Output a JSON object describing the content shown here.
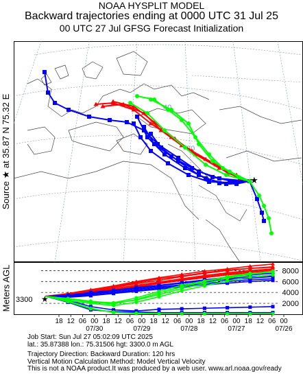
{
  "header": {
    "line1": "NOAA HYSPLIT MODEL",
    "line2": "Backward trajectories ending at 0000 UTC 31 Jul 25",
    "line3": "00 UTC 27 Jul    GFSG  Forecast Initialization"
  },
  "side_label": "Source ★ at   35.87 N   75.32 E",
  "vertical_axis_label": "Meters AGL",
  "source_height_label": "3300",
  "map": {
    "latitude_labels": [
      "40",
      "30"
    ],
    "trajectory_colors": [
      "#ff0000",
      "#0000ff",
      "#00ff00"
    ]
  },
  "footer": {
    "job_start": "Job Start: Sun Jul 27 05:02:09 UTC 2025",
    "location": "lat.: 35.87388   lon.: 75.31506   hgt: 3300.0 m AGL",
    "direction": "Trajectory Direction: Backward        Duration: 120 hrs",
    "vertical_motion": "Vertical Motion Calculation Method: Model Vertical Velocity",
    "disclaimer": "This is not a NOAA product.It was produced by a web user. www.arl.noaa.gov/ready"
  },
  "chart_data": {
    "type": "line",
    "ylabel": "Meters AGL",
    "yticks": [
      2000,
      4000,
      6000,
      8000
    ],
    "ylim": [
      0,
      9300
    ],
    "x_hour_labels": [
      "18",
      "12",
      "06",
      "00",
      "18",
      "12",
      "06",
      "00",
      "18",
      "12",
      "06",
      "00",
      "18",
      "12",
      "06",
      "00",
      "18",
      "12",
      "06",
      "00"
    ],
    "x_date_labels": [
      "07/30",
      "07/29",
      "07/28",
      "07/27",
      "07/26"
    ],
    "xlim_hours_back": [
      120,
      0
    ],
    "source_height": 3300,
    "series": [
      {
        "color": "#ff0000",
        "values": [
          3300,
          3800,
          4500,
          5200,
          6000,
          6700,
          7300,
          7900,
          8300,
          8800,
          9200
        ]
      },
      {
        "color": "#ff0000",
        "values": [
          3300,
          3600,
          4200,
          4900,
          5600,
          6200,
          6900,
          7500,
          8000,
          8400,
          8700
        ]
      },
      {
        "color": "#ff0000",
        "values": [
          3300,
          3700,
          4300,
          5000,
          5800,
          6500,
          7000,
          7600,
          8100,
          8400,
          8600
        ]
      },
      {
        "color": "#ff0000",
        "values": [
          3300,
          3500,
          4100,
          4700,
          5300,
          5900,
          6500,
          7100,
          7600,
          8000,
          8300
        ]
      },
      {
        "color": "#ff0000",
        "values": [
          3300,
          3600,
          4000,
          4500,
          5100,
          5700,
          6300,
          6900,
          7400,
          7800,
          8100
        ]
      },
      {
        "color": "#ff0000",
        "values": [
          3300,
          3400,
          3900,
          4400,
          5000,
          5600,
          6200,
          6700,
          7200,
          7600,
          7900
        ]
      },
      {
        "color": "#0000ff",
        "values": [
          3300,
          3500,
          4000,
          4400,
          4900,
          5300,
          5800,
          6300,
          6800,
          7200,
          7500
        ]
      },
      {
        "color": "#0000ff",
        "values": [
          3300,
          3400,
          3800,
          4300,
          4800,
          5200,
          5700,
          6100,
          6500,
          6900,
          7100
        ]
      },
      {
        "color": "#0000ff",
        "values": [
          3300,
          3300,
          3700,
          4100,
          4600,
          5000,
          5400,
          5900,
          6300,
          6600,
          6900
        ]
      },
      {
        "color": "#0000ff",
        "values": [
          3300,
          3200,
          3500,
          3900,
          4400,
          4800,
          5200,
          5600,
          6000,
          6300,
          6500
        ]
      },
      {
        "color": "#0000ff",
        "values": [
          3300,
          3100,
          3400,
          3800,
          4200,
          4600,
          5000,
          5400,
          5700,
          6000,
          6200
        ]
      },
      {
        "color": "#0000ff",
        "values": [
          3300,
          2200,
          800,
          500,
          400,
          300,
          300,
          300,
          300,
          300,
          300
        ]
      },
      {
        "color": "#0000ff",
        "values": [
          3300,
          2600,
          1400,
          800,
          600,
          900,
          1000,
          1100,
          1200,
          1300,
          1400
        ]
      },
      {
        "color": "#00ff00",
        "values": [
          3300,
          2900,
          2400,
          2000,
          2600,
          3600,
          4700,
          5600,
          6600,
          7300,
          7800
        ]
      },
      {
        "color": "#00ff00",
        "values": [
          3300,
          2800,
          2200,
          1900,
          2700,
          3900,
          5000,
          6000,
          6800,
          7400,
          7900
        ]
      },
      {
        "color": "#00ff00",
        "values": [
          3300,
          2700,
          2300,
          2100,
          3000,
          4200,
          5300,
          6100,
          6900,
          7500,
          7700
        ]
      },
      {
        "color": "#00ff00",
        "values": [
          3300,
          2500,
          2000,
          1600,
          2200,
          3200,
          4300,
          5200,
          6100,
          6800,
          7200
        ]
      },
      {
        "color": "#00ff00",
        "values": [
          3300,
          2400,
          1100,
          300,
          200,
          100,
          100,
          100,
          100,
          100,
          100
        ]
      },
      {
        "color": "#00ff00",
        "values": [
          3300,
          2300,
          1000,
          400,
          150,
          100,
          100,
          100,
          100,
          100,
          100
        ]
      }
    ]
  }
}
